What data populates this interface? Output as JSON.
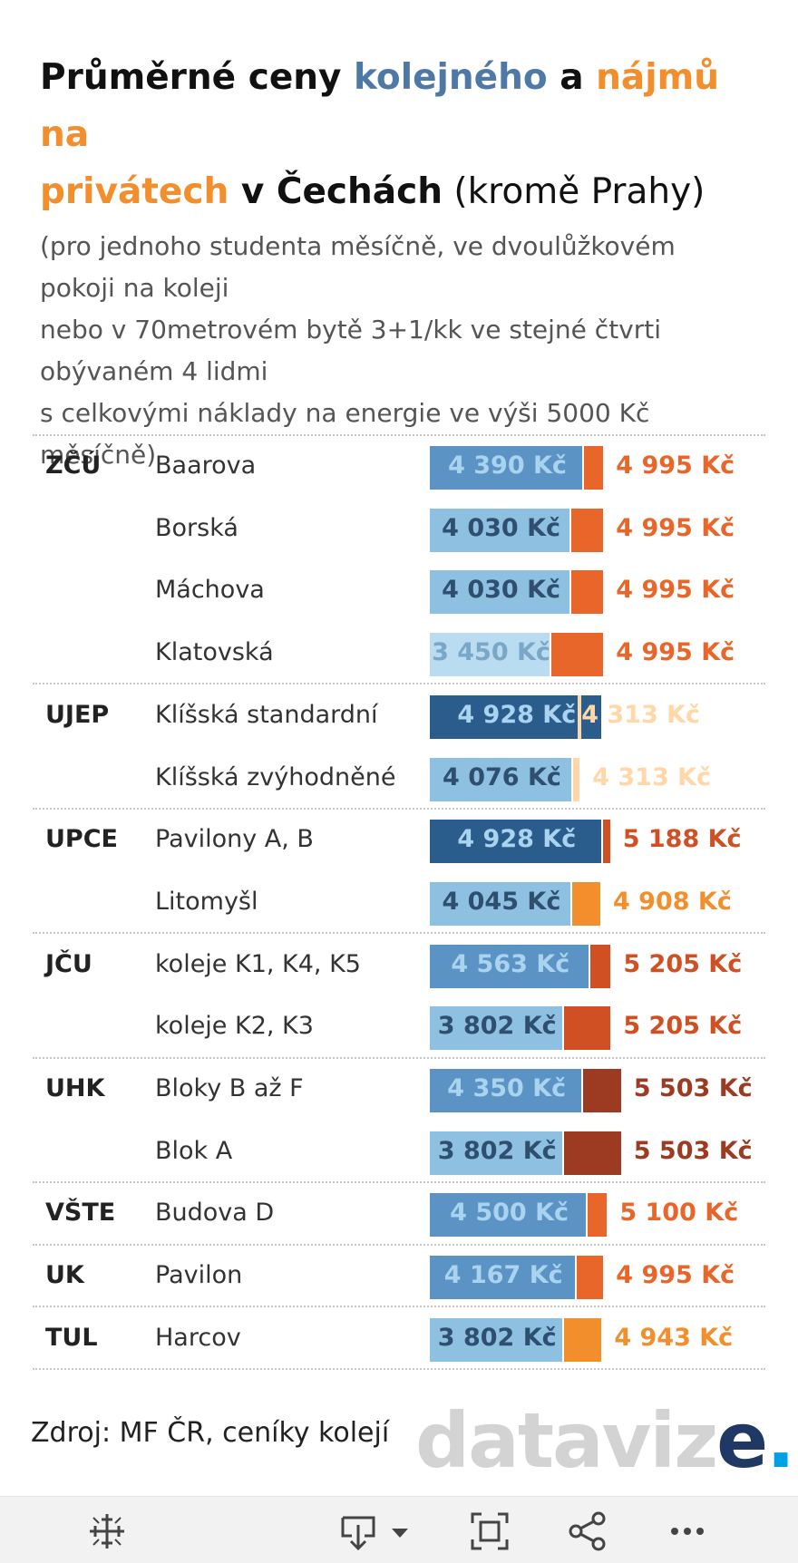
{
  "title": {
    "part1": "Průměrné ceny ",
    "blue": "kolejného",
    "part2": " a ",
    "orange1": "nájmů na",
    "orange2": "privátech",
    "part3": " v Čechách",
    "part4": " (kromě Prahy)"
  },
  "subtitle": [
    "(pro jednoho studenta měsíčně, ve dvoulůžkovém",
    "pokoji na koleji",
    "nebo v 70metrovém bytě 3+1/kk ve stejné čtvrti",
    "obývaném 4 lidmi",
    "s celkovými náklady na energie ve výši 5000 Kč",
    "měsíčně)"
  ],
  "chart_data": {
    "type": "bar",
    "orientation": "horizontal",
    "series": [
      {
        "name": "kolejné"
      },
      {
        "name": "nájmy na privátech"
      }
    ],
    "groups": [
      {
        "uni": "ZČÚ",
        "rows": [
          {
            "dorm": "Baarova",
            "dorm_price": 4390,
            "dorm_label": "4 390 Kč",
            "rent": 4995,
            "rent_label": "4 995 Kč"
          },
          {
            "dorm": "Borská",
            "dorm_price": 4030,
            "dorm_label": "4 030 Kč",
            "rent": 4995,
            "rent_label": "4 995 Kč"
          },
          {
            "dorm": "Máchova",
            "dorm_price": 4030,
            "dorm_label": "4 030 Kč",
            "rent": 4995,
            "rent_label": "4 995 Kč"
          },
          {
            "dorm": "Klatovská",
            "dorm_price": 3450,
            "dorm_label": "3 450 Kč",
            "rent": 4995,
            "rent_label": "4 995 Kč"
          }
        ]
      },
      {
        "uni": "UJEP",
        "rows": [
          {
            "dorm": "Klíšská standardní",
            "dorm_price": 4928,
            "dorm_label": "4 928 Kč",
            "rent": 4313,
            "rent_label": "4 313 Kč"
          },
          {
            "dorm": "Klíšská zvýhodněné",
            "dorm_price": 4076,
            "dorm_label": "4 076 Kč",
            "rent": 4313,
            "rent_label": "4 313 Kč"
          }
        ]
      },
      {
        "uni": "UPCE",
        "rows": [
          {
            "dorm": "Pavilony A, B",
            "dorm_price": 4928,
            "dorm_label": "4 928 Kč",
            "rent": 5188,
            "rent_label": "5 188 Kč"
          },
          {
            "dorm": "Litomyšl",
            "dorm_price": 4045,
            "dorm_label": "4 045 Kč",
            "rent": 4908,
            "rent_label": "4 908 Kč"
          }
        ]
      },
      {
        "uni": "JČU",
        "rows": [
          {
            "dorm": "koleje K1, K4, K5",
            "dorm_price": 4563,
            "dorm_label": "4 563 Kč",
            "rent": 5205,
            "rent_label": "5 205 Kč"
          },
          {
            "dorm": "koleje K2, K3",
            "dorm_price": 3802,
            "dorm_label": "3 802 Kč",
            "rent": 5205,
            "rent_label": "5 205 Kč"
          }
        ]
      },
      {
        "uni": "UHK",
        "rows": [
          {
            "dorm": "Bloky B až F",
            "dorm_price": 4350,
            "dorm_label": "4 350 Kč",
            "rent": 5503,
            "rent_label": "5 503 Kč"
          },
          {
            "dorm": "Blok A",
            "dorm_price": 3802,
            "dorm_label": "3 802 Kč",
            "rent": 5503,
            "rent_label": "5 503 Kč"
          }
        ]
      },
      {
        "uni": "VŠTE",
        "rows": [
          {
            "dorm": "Budova D",
            "dorm_price": 4500,
            "dorm_label": "4 500 Kč",
            "rent": 5100,
            "rent_label": "5 100 Kč"
          }
        ]
      },
      {
        "uni": "UK",
        "rows": [
          {
            "dorm": "Pavilon",
            "dorm_price": 4167,
            "dorm_label": "4 167 Kč",
            "rent": 4995,
            "rent_label": "4 995 Kč"
          }
        ]
      },
      {
        "uni": "TUL",
        "rows": [
          {
            "dorm": "Harcov",
            "dorm_price": 3802,
            "dorm_label": "3 802 Kč",
            "rent": 4943,
            "rent_label": "4 943 Kč"
          }
        ]
      }
    ],
    "xlim": [
      0,
      12500
    ],
    "grid": false,
    "legend": "none"
  },
  "source": "Zdroj: MF ČR, ceníky kolejí",
  "logo": {
    "main": "datavize",
    "e": "e",
    "dot": "."
  },
  "colors": {
    "dorm_scale": [
      "#b9dcf0",
      "#8ec0e2",
      "#5b93c4",
      "#2b5d8c"
    ],
    "rent_scale": [
      "#ffd7a8",
      "#f28e2b",
      "#e8662a",
      "#d04f23",
      "#9c3a22"
    ],
    "accent_blue": "#4e79a7",
    "accent_orange": "#f28e2b"
  },
  "toolbar": [
    {
      "name": "tableau-logo-icon"
    },
    {
      "name": "download-icon"
    },
    {
      "name": "fullscreen-icon"
    },
    {
      "name": "share-icon"
    },
    {
      "name": "more-icon"
    }
  ]
}
